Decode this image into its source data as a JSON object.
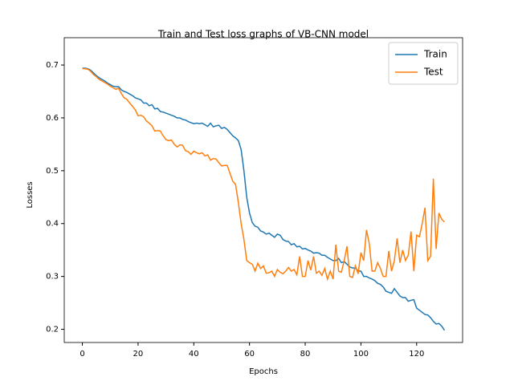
{
  "chart_data": {
    "type": "line",
    "title": "Train and Test loss graphs of VB-CNN model",
    "xlabel": "Epochs",
    "ylabel": "Losses",
    "x": [
      0,
      1,
      2,
      3,
      4,
      5,
      6,
      7,
      8,
      9,
      10,
      11,
      12,
      13,
      14,
      15,
      16,
      17,
      18,
      19,
      20,
      21,
      22,
      23,
      24,
      25,
      26,
      27,
      28,
      29,
      30,
      31,
      32,
      33,
      34,
      35,
      36,
      37,
      38,
      39,
      40,
      41,
      42,
      43,
      44,
      45,
      46,
      47,
      48,
      49,
      50,
      51,
      52,
      53,
      54,
      55,
      56,
      57,
      58,
      59,
      60,
      61,
      62,
      63,
      64,
      65,
      66,
      67,
      68,
      69,
      70,
      71,
      72,
      73,
      74,
      75,
      76,
      77,
      78,
      79,
      80,
      81,
      82,
      83,
      84,
      85,
      86,
      87,
      88,
      89,
      90,
      91,
      92,
      93,
      94,
      95,
      96,
      97,
      98,
      99,
      100,
      101,
      102,
      103,
      104,
      105,
      106,
      107,
      108,
      109,
      110,
      111,
      112,
      113,
      114,
      115,
      116,
      117,
      118,
      119,
      120,
      121,
      122,
      123,
      124,
      125,
      126,
      127,
      128,
      129,
      130
    ],
    "series": [
      {
        "name": "Train",
        "color": "#1f77b4",
        "values": [
          0.694,
          0.694,
          0.693,
          0.69,
          0.685,
          0.68,
          0.676,
          0.673,
          0.67,
          0.666,
          0.663,
          0.66,
          0.659,
          0.659,
          0.653,
          0.65,
          0.648,
          0.645,
          0.642,
          0.638,
          0.636,
          0.634,
          0.628,
          0.628,
          0.623,
          0.625,
          0.617,
          0.618,
          0.612,
          0.611,
          0.609,
          0.607,
          0.605,
          0.603,
          0.6,
          0.6,
          0.597,
          0.596,
          0.593,
          0.591,
          0.589,
          0.59,
          0.589,
          0.59,
          0.587,
          0.584,
          0.59,
          0.583,
          0.585,
          0.586,
          0.58,
          0.582,
          0.578,
          0.572,
          0.566,
          0.562,
          0.557,
          0.54,
          0.5,
          0.45,
          0.42,
          0.402,
          0.395,
          0.393,
          0.386,
          0.384,
          0.38,
          0.382,
          0.378,
          0.374,
          0.38,
          0.378,
          0.37,
          0.367,
          0.366,
          0.36,
          0.362,
          0.356,
          0.357,
          0.352,
          0.353,
          0.35,
          0.348,
          0.344,
          0.345,
          0.344,
          0.34,
          0.34,
          0.336,
          0.333,
          0.33,
          0.33,
          0.334,
          0.326,
          0.328,
          0.323,
          0.318,
          0.316,
          0.316,
          0.31,
          0.31,
          0.3,
          0.3,
          0.297,
          0.295,
          0.292,
          0.287,
          0.285,
          0.28,
          0.272,
          0.27,
          0.268,
          0.277,
          0.27,
          0.263,
          0.26,
          0.26,
          0.253,
          0.255,
          0.256,
          0.24,
          0.236,
          0.232,
          0.228,
          0.227,
          0.222,
          0.215,
          0.21,
          0.211,
          0.206,
          0.198
        ]
      },
      {
        "name": "Test",
        "color": "#ff7f0e",
        "values": [
          0.693,
          0.693,
          0.692,
          0.688,
          0.682,
          0.678,
          0.673,
          0.67,
          0.667,
          0.664,
          0.66,
          0.657,
          0.654,
          0.656,
          0.646,
          0.638,
          0.635,
          0.628,
          0.622,
          0.615,
          0.604,
          0.605,
          0.602,
          0.594,
          0.59,
          0.585,
          0.575,
          0.576,
          0.575,
          0.566,
          0.559,
          0.557,
          0.558,
          0.55,
          0.545,
          0.549,
          0.548,
          0.538,
          0.536,
          0.531,
          0.537,
          0.534,
          0.532,
          0.534,
          0.528,
          0.53,
          0.52,
          0.523,
          0.522,
          0.515,
          0.509,
          0.51,
          0.51,
          0.495,
          0.48,
          0.474,
          0.44,
          0.4,
          0.37,
          0.33,
          0.326,
          0.323,
          0.31,
          0.325,
          0.315,
          0.32,
          0.306,
          0.307,
          0.31,
          0.3,
          0.313,
          0.308,
          0.305,
          0.31,
          0.317,
          0.31,
          0.313,
          0.303,
          0.338,
          0.3,
          0.3,
          0.33,
          0.312,
          0.338,
          0.306,
          0.31,
          0.302,
          0.315,
          0.295,
          0.31,
          0.295,
          0.36,
          0.31,
          0.308,
          0.33,
          0.357,
          0.3,
          0.298,
          0.32,
          0.305,
          0.345,
          0.33,
          0.388,
          0.362,
          0.31,
          0.31,
          0.326,
          0.315,
          0.3,
          0.3,
          0.348,
          0.31,
          0.33,
          0.372,
          0.326,
          0.35,
          0.33,
          0.34,
          0.385,
          0.31,
          0.378,
          0.375,
          0.4,
          0.43,
          0.33,
          0.338,
          0.485,
          0.352,
          0.42,
          0.408,
          0.403
        ]
      }
    ],
    "xlim": [
      -6.5,
      136.5
    ],
    "ylim": [
      0.175,
      0.735
    ],
    "xticks": [
      0,
      20,
      40,
      60,
      80,
      100,
      120
    ],
    "yticks": [
      0.2,
      0.3,
      0.4,
      0.5,
      0.6,
      0.7
    ],
    "legend": "upper right",
    "grid": false
  }
}
